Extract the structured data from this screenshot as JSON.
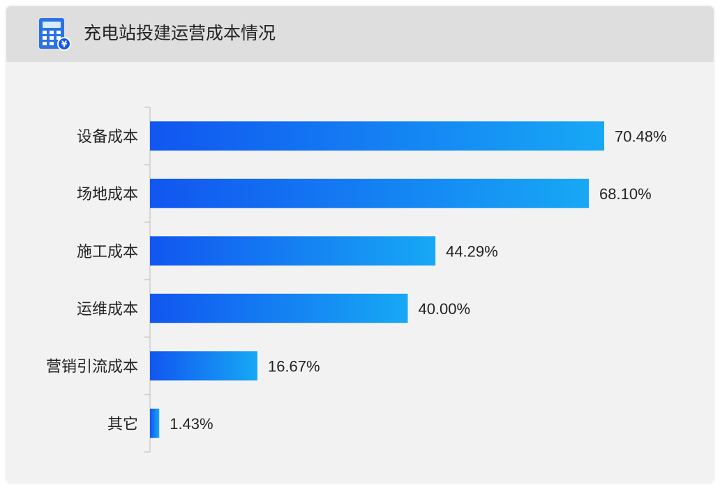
{
  "header": {
    "title": "充电站投建运营成本情况",
    "icon": "calculator-yen-icon"
  },
  "colors": {
    "bar_start": "#1156f0",
    "bar_end": "#17a8f5",
    "axis": "#cccccc",
    "header_bg": "#dedede",
    "panel_bg": "#f2f2f2",
    "text": "#222222"
  },
  "chart_data": {
    "type": "bar",
    "orientation": "horizontal",
    "categories": [
      "设备成本",
      "场地成本",
      "施工成本",
      "运维成本",
      "营销引流成本",
      "其它"
    ],
    "values": [
      70.48,
      68.1,
      44.29,
      40.0,
      16.67,
      1.43
    ],
    "value_labels": [
      "70.48%",
      "68.10%",
      "44.29%",
      "40.00%",
      "16.67%",
      "1.43%"
    ],
    "unit": "%",
    "title": "充电站投建运营成本情况",
    "xlim": [
      0,
      100
    ],
    "grid": false,
    "legend": "none"
  }
}
